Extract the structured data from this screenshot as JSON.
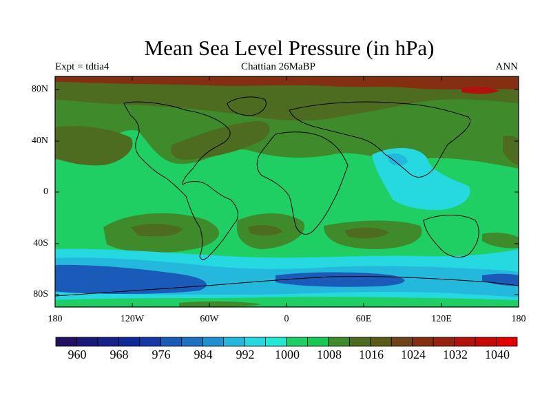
{
  "title": "Mean Sea Level Pressure (in hPa)",
  "subtitle_left": "Expt = tdtia4",
  "subtitle_center": "Chattian  26MaBP",
  "subtitle_right": "ANN",
  "map": {
    "lat_ticks": [
      "80N",
      "40N",
      "0",
      "40S",
      "80S"
    ],
    "lat_tick_values": [
      80,
      40,
      0,
      -40,
      -80
    ],
    "lon_ticks": [
      "180",
      "120W",
      "60W",
      "0",
      "60E",
      "120E",
      "180"
    ],
    "lon_tick_values": [
      -180,
      -120,
      -60,
      0,
      60,
      120,
      180
    ],
    "lat_range": [
      -90,
      90
    ],
    "lon_range": [
      -180,
      180
    ]
  },
  "colorbar": {
    "labels": [
      "960",
      "968",
      "976",
      "984",
      "992",
      "1000",
      "1008",
      "1016",
      "1024",
      "1032",
      "1040"
    ],
    "colors": [
      "#22115e",
      "#1a1a7a",
      "#16228a",
      "#10299a",
      "#1438a6",
      "#1a5ab8",
      "#1f72c2",
      "#2190d0",
      "#23b8dc",
      "#26d8e0",
      "#22e8d8",
      "#1fcf63",
      "#18c855",
      "#3f8a2a",
      "#4e6c1f",
      "#5a5a1a",
      "#70421a",
      "#842e12",
      "#96230f",
      "#b0120c",
      "#c70808",
      "#e00000"
    ]
  },
  "colors": {
    "band_1008": "#1fcf63",
    "band_1016": "#3f8a2a",
    "band_1024": "#4e6c1f",
    "band_1032": "#842e12",
    "band_1000": "#26d8e0",
    "band_992": "#23b8dc",
    "band_984": "#1a5ab8"
  }
}
